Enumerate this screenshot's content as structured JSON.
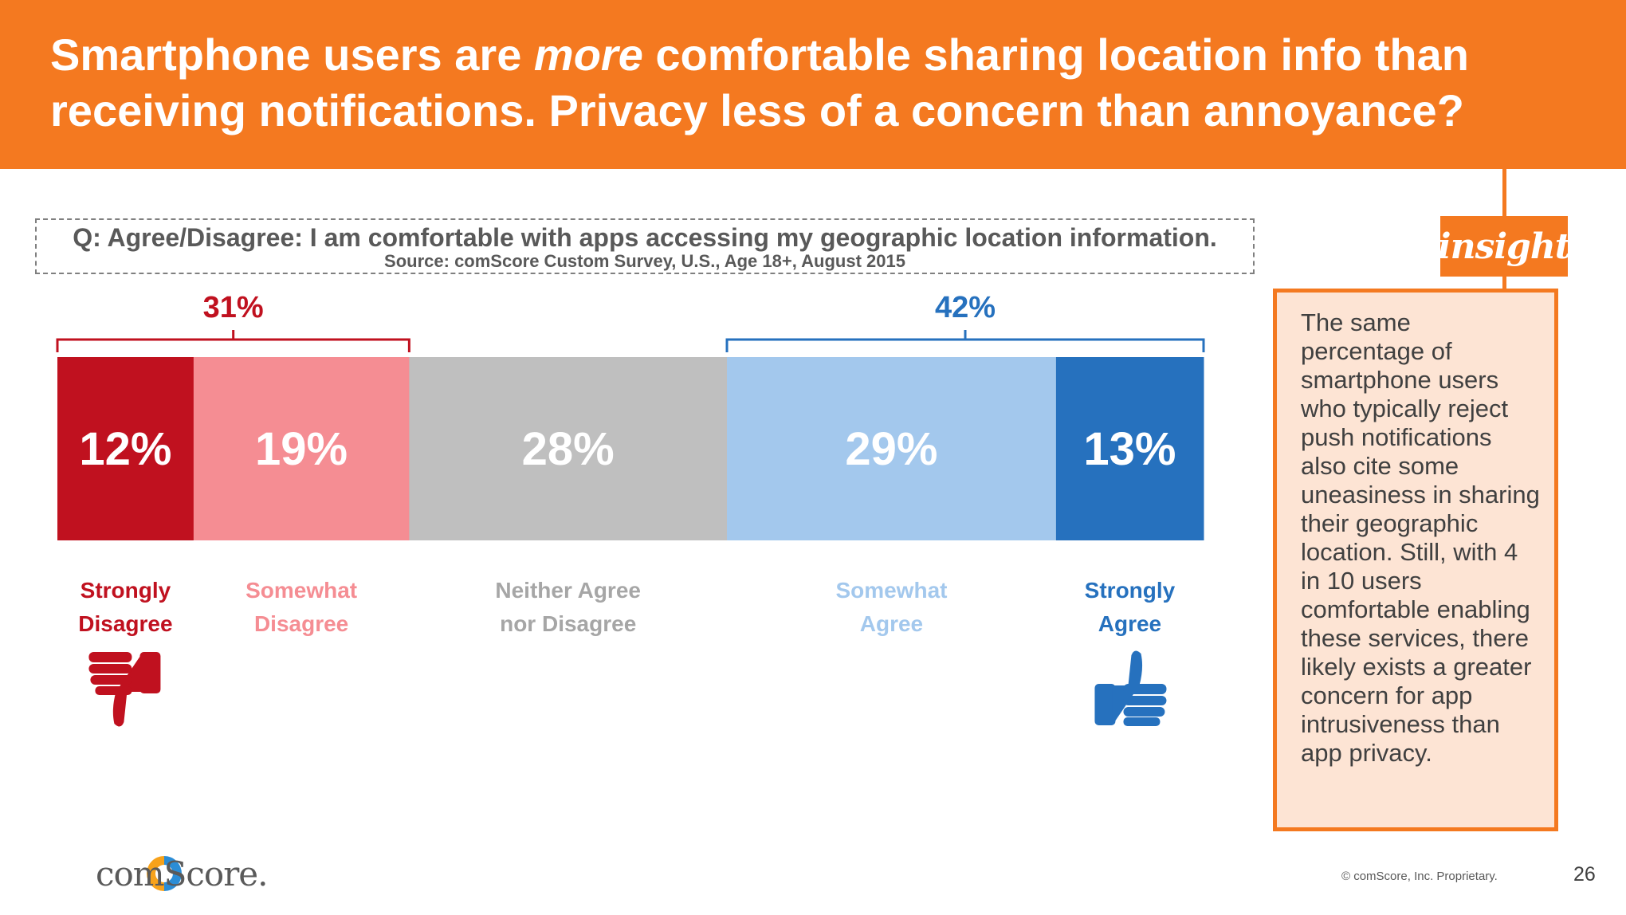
{
  "header": {
    "title_line1_pre": "Smartphone users are ",
    "title_emphasis": "more",
    "title_line1_post": " comfortable sharing location info than",
    "title_line2": "receiving notifications. Privacy less of a concern than annoyance?"
  },
  "question": {
    "text": "Q: Agree/Disagree: I am comfortable with apps accessing my geographic location information.",
    "source": "Source: comScore Custom Survey, U.S., Age 18+, August 2015"
  },
  "chart_data": {
    "type": "bar",
    "orientation": "horizontal-stacked",
    "categories": [
      "Strongly Disagree",
      "Somewhat Disagree",
      "Neither Agree nor Disagree",
      "Somewhat Agree",
      "Strongly Agree"
    ],
    "label_lines": [
      [
        "Strongly",
        "Disagree"
      ],
      [
        "Somewhat",
        "Disagree"
      ],
      [
        "Neither Agree",
        "nor Disagree"
      ],
      [
        "Somewhat",
        "Agree"
      ],
      [
        "Strongly",
        "Agree"
      ]
    ],
    "values": [
      12,
      19,
      28,
      29,
      13
    ],
    "value_labels": [
      "12%",
      "19%",
      "28%",
      "29%",
      "13%"
    ],
    "colors": [
      "#c0111f",
      "#f58d93",
      "#bfbfbf",
      "#a3c8ed",
      "#2671be"
    ],
    "label_colors": [
      "#c0111f",
      "#f58d93",
      "#a6a6a6",
      "#a3c8ed",
      "#2671be"
    ],
    "groups": [
      {
        "label": "31%",
        "from": 0,
        "to": 1,
        "color": "#c0111f"
      },
      {
        "label": "42%",
        "from": 3,
        "to": 4,
        "color": "#2671be"
      }
    ],
    "icons": [
      {
        "name": "thumbs-down-icon",
        "segment": 0,
        "color": "#c0111f"
      },
      {
        "name": "thumbs-up-icon",
        "segment": 4,
        "color": "#2671be"
      }
    ]
  },
  "insight": {
    "badge": "insight",
    "text": "The same percentage of smartphone users who typically reject push notifications also cite some uneasiness in sharing their geographic location. Still, with 4 in 10 users comfortable enabling these services, there likely exists a greater concern for app intrusiveness than app privacy."
  },
  "footer": {
    "logo_text": "comScore.",
    "copyright": "© comScore, Inc. Proprietary.",
    "page_number": "26"
  },
  "colors": {
    "accent": "#f47920",
    "insight_bg": "#fde4d4"
  }
}
